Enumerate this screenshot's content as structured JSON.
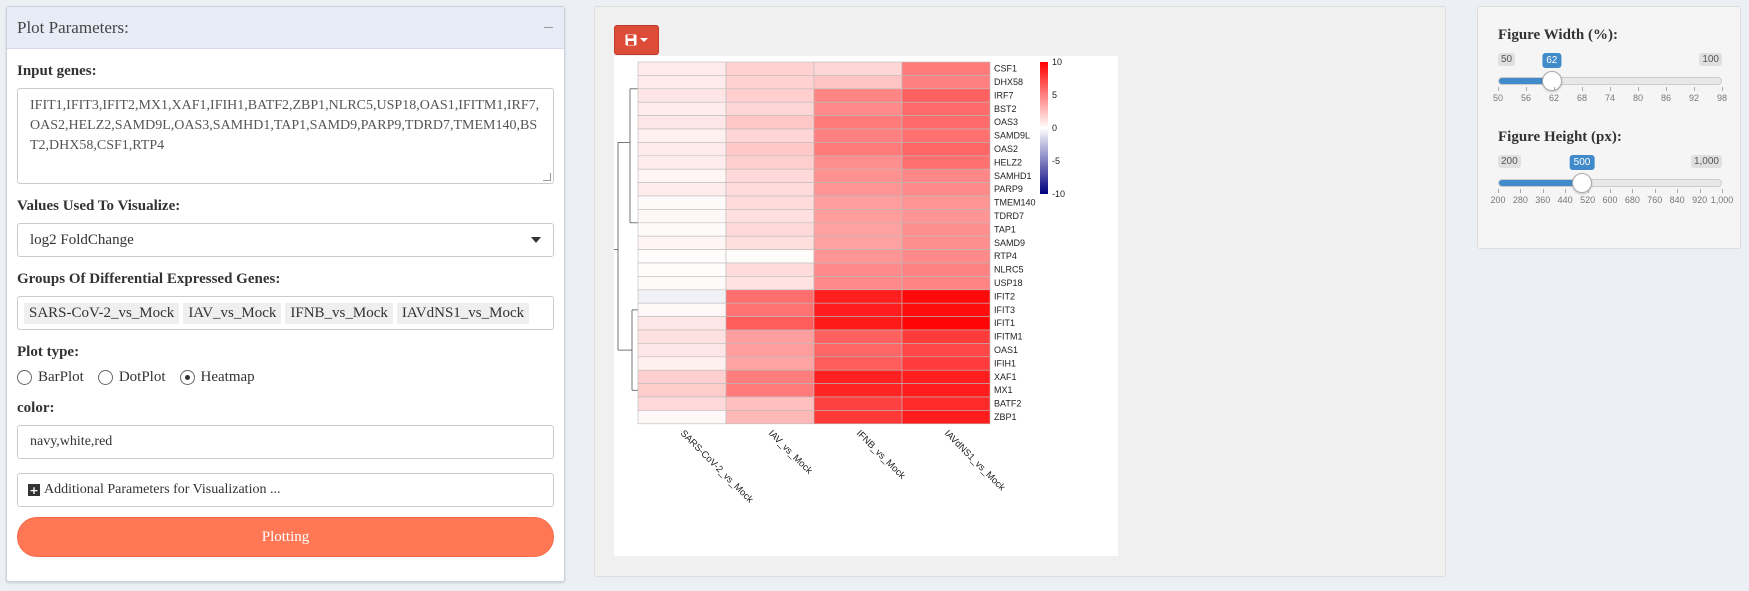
{
  "left_panel": {
    "title": "Plot Parameters:",
    "collapse_symbol": "−",
    "input_genes_label": "Input genes:",
    "input_genes_value": "IFIT1,IFIT3,IFIT2,MX1,XAF1,IFIH1,BATF2,ZBP1,NLRC5,USP18,OAS1,IFITM1,IRF7,OAS2,HELZ2,SAMD9L,OAS3,SAMHD1,TAP1,SAMD9,PARP9,TDRD7,TMEM140,BST2,DHX58,CSF1,RTP4",
    "values_label": "Values Used To Visualize:",
    "values_selected": "log2 FoldChange",
    "groups_label": "Groups Of Differential Expressed Genes:",
    "groups": [
      "SARS-CoV-2_vs_Mock",
      "IAV_vs_Mock",
      "IFNB_vs_Mock",
      "IAVdNS1_vs_Mock"
    ],
    "plot_type_label": "Plot type:",
    "plot_types": [
      "BarPlot",
      "DotPlot",
      "Heatmap"
    ],
    "plot_type_selected": "Heatmap",
    "color_label": "color:",
    "color_value": "navy,white,red",
    "additional_label": "Additional Parameters for Visualization ...",
    "plot_button": "Plotting"
  },
  "colors": {
    "accent_orange": "#ff7755",
    "save_red": "#dd4b39",
    "slider_blue": "#428bca",
    "heat_low": "#000080",
    "heat_mid": "#ffffff",
    "heat_high": "#ff0000"
  },
  "chart_data": {
    "type": "heatmap",
    "title": "",
    "columns": [
      "SARS-CoV-2_vs_Mock",
      "IAV_vs_Mock",
      "IFNB_vs_Mock",
      "IAVdNS1_vs_Mock"
    ],
    "rows": [
      "CSF1",
      "DHX58",
      "IRF7",
      "BST2",
      "OAS3",
      "SAMD9L",
      "OAS2",
      "HELZ2",
      "SAMHD1",
      "PARP9",
      "TMEM140",
      "TDRD7",
      "TAP1",
      "SAMD9",
      "RTP4",
      "NLRC5",
      "USP18",
      "IFIT2",
      "IFIT3",
      "IFIT1",
      "IFITM1",
      "OAS1",
      "IFIH1",
      "XAF1",
      "MX1",
      "BATF2",
      "ZBP1"
    ],
    "values": [
      [
        0.8,
        1.8,
        1.6,
        5.2
      ],
      [
        0.8,
        1.8,
        2.3,
        5.0
      ],
      [
        1.0,
        1.9,
        4.8,
        6.2
      ],
      [
        0.7,
        1.6,
        4.6,
        5.8
      ],
      [
        1.0,
        2.2,
        5.2,
        5.8
      ],
      [
        0.6,
        1.6,
        5.0,
        5.6
      ],
      [
        0.8,
        2.1,
        5.2,
        6.0
      ],
      [
        0.7,
        1.9,
        4.4,
        5.6
      ],
      [
        0.4,
        1.5,
        4.3,
        4.7
      ],
      [
        0.7,
        1.4,
        4.2,
        4.6
      ],
      [
        0.2,
        1.4,
        3.8,
        4.2
      ],
      [
        0.3,
        1.2,
        3.9,
        4.2
      ],
      [
        0.2,
        1.5,
        3.7,
        4.4
      ],
      [
        0.4,
        1.3,
        3.7,
        4.4
      ],
      [
        0.1,
        0.1,
        4.2,
        4.6
      ],
      [
        0.1,
        1.4,
        4.6,
        4.9
      ],
      [
        0.2,
        1.1,
        4.6,
        4.8
      ],
      [
        -0.6,
        5.7,
        8.8,
        9.6
      ],
      [
        0.3,
        5.5,
        8.9,
        9.5
      ],
      [
        1.0,
        6.4,
        9.0,
        9.8
      ],
      [
        1.2,
        3.8,
        6.2,
        7.7
      ],
      [
        1.0,
        3.9,
        6.0,
        7.2
      ],
      [
        0.6,
        3.6,
        6.4,
        7.7
      ],
      [
        1.9,
        5.1,
        8.7,
        8.8
      ],
      [
        2.0,
        5.2,
        8.6,
        8.9
      ],
      [
        1.5,
        2.5,
        7.5,
        8.3
      ],
      [
        0.3,
        2.8,
        7.8,
        8.9
      ]
    ],
    "legend_ticks": [
      "10",
      "5",
      "0",
      "-5",
      "-10"
    ],
    "color_range": [
      -10,
      10
    ]
  },
  "right_panel": {
    "width_label": "Figure Width (%):",
    "width_min": "50",
    "width_max": "100",
    "width_value": "62",
    "width_min_num": 50,
    "width_max_num": 100,
    "width_value_num": 62,
    "width_ticks": [
      "50",
      "56",
      "62",
      "68",
      "74",
      "80",
      "86",
      "92",
      "98"
    ],
    "height_label": "Figure Height (px):",
    "height_min": "200",
    "height_max": "1,000",
    "height_value": "500",
    "height_min_num": 200,
    "height_max_num": 1000,
    "height_value_num": 500,
    "height_ticks": [
      "200",
      "280",
      "360",
      "440",
      "520",
      "600",
      "680",
      "760",
      "840",
      "920",
      "1,000"
    ]
  }
}
